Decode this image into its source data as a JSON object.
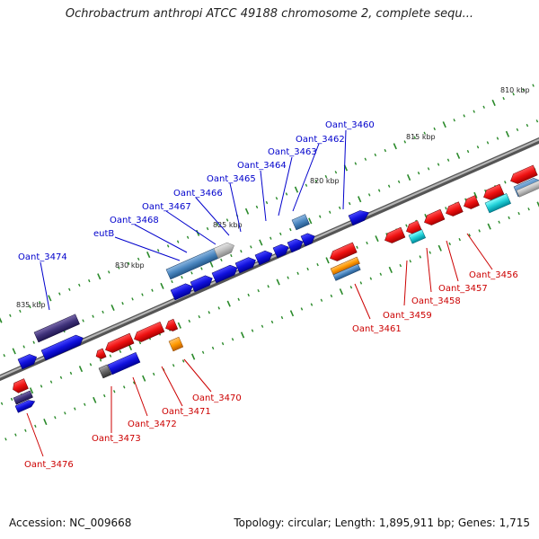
{
  "title": "Ochrobactrum anthropi ATCC 49188 chromosome 2, complete sequ...",
  "footer": {
    "accession": "Accession: NC_009668",
    "summary": "Topology: circular; Length: 1,895,911 bp; Genes: 1,715"
  },
  "colors": {
    "forward_label": "#0000cc",
    "reverse_label": "#cc0000",
    "backbone": "#8a8a8a",
    "tick": "#2a8a2a"
  },
  "kbp_marks": [
    "810 kbp",
    "815 kbp",
    "820 kbp",
    "825 kbp",
    "830 kbp",
    "835 kbp"
  ],
  "forward_genes": [
    "Oant_3460",
    "Oant_3462",
    "Oant_3463",
    "Oant_3464",
    "Oant_3465",
    "Oant_3466",
    "Oant_3467",
    "Oant_3468",
    "eutB",
    "Oant_3474"
  ],
  "reverse_genes": [
    "Oant_3456",
    "Oant_3457",
    "Oant_3458",
    "Oant_3459",
    "Oant_3461",
    "Oant_3470",
    "Oant_3471",
    "Oant_3472",
    "Oant_3473",
    "Oant_3476"
  ]
}
